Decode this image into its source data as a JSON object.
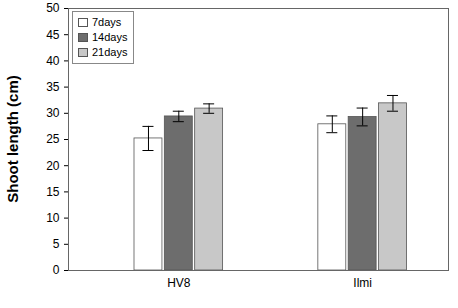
{
  "chart_data": {
    "type": "bar",
    "categories": [
      "HV8",
      "Ilmi"
    ],
    "series": [
      {
        "name": "7days",
        "color": "#ffffff",
        "values": [
          25.2,
          27.9
        ],
        "errors": [
          2.3,
          1.6
        ]
      },
      {
        "name": "14days",
        "color": "#6d6d6d",
        "values": [
          29.4,
          29.3
        ],
        "errors": [
          1.0,
          1.7
        ]
      },
      {
        "name": "21days",
        "color": "#c8c8c8",
        "values": [
          30.9,
          31.9
        ],
        "errors": [
          0.9,
          1.5
        ]
      }
    ],
    "ylabel": "Shoot length (cm)",
    "ylim": [
      0,
      50
    ],
    "yticks": [
      0,
      5,
      10,
      15,
      20,
      25,
      30,
      35,
      40,
      45,
      50
    ],
    "legend": "upper left",
    "grid": false
  }
}
